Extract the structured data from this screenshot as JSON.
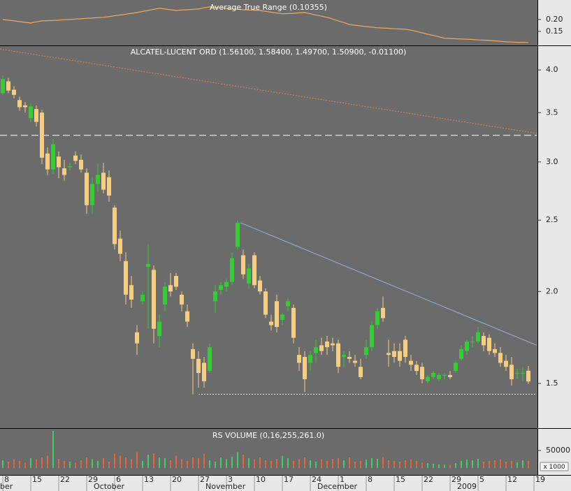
{
  "chart_data": [
    {
      "type": "line",
      "title": "Average True Range (0.10355)",
      "color": "#f0a860",
      "values": [
        0.2,
        0.197,
        0.194,
        0.191,
        0.188,
        0.185,
        0.19,
        0.194,
        0.195,
        0.196,
        0.197,
        0.199,
        0.2,
        0.202,
        0.203,
        0.205,
        0.206,
        0.208,
        0.209,
        0.212,
        0.216,
        0.219,
        0.222,
        0.226,
        0.229,
        0.234,
        0.238,
        0.243,
        0.247,
        0.244,
        0.241,
        0.238,
        0.24,
        0.241,
        0.243,
        0.244,
        0.249,
        0.253,
        0.251,
        0.249,
        0.246,
        0.244,
        0.243,
        0.241,
        0.24,
        0.239,
        0.238,
        0.234,
        0.231,
        0.227,
        0.224,
        0.225,
        0.226,
        0.228,
        0.229,
        0.224,
        0.219,
        0.214,
        0.209,
        0.202,
        0.194,
        0.187,
        0.179,
        0.176,
        0.173,
        0.17,
        0.168,
        0.165,
        0.164,
        0.163,
        0.161,
        0.16,
        0.159,
        0.155,
        0.15,
        0.144,
        0.138,
        0.133,
        0.127,
        0.121,
        0.12,
        0.119,
        0.118,
        0.117,
        0.116,
        0.114,
        0.113,
        0.112,
        0.11,
        0.108,
        0.106,
        0.105,
        0.104,
        0.104,
        0.10355,
        null
      ],
      "ylim": [
        0.091,
        0.282
      ],
      "yticks": [
        {
          "value": 0.2,
          "label": "0.20"
        },
        0.15
      ]
    },
    {
      "type": "candlestick",
      "title": "ALCATEL-LUCENT ORD (1.56100, 1.58400, 1.49700, 1.50900, -0.01100)",
      "up_color": "#33cc33",
      "down_color": "#f7cd80",
      "log_scale": true,
      "open": [
        3.72,
        3.86,
        3.76,
        3.64,
        3.58,
        3.44,
        3.54,
        3.5,
        3.08,
        2.93,
        3.05,
        2.94,
        2.95,
        3.06,
        3.02,
        2.9,
        2.62,
        2.8,
        2.9,
        2.86,
        2.6,
        2.36,
        2.2,
        2.04,
        1.76,
        1.94,
        2.16,
        2.14,
        1.74,
        1.92,
        2.04,
        2.1,
        1.98,
        1.88,
        1.67,
        1.62,
        1.6,
        1.56,
        1.94,
        2.01,
        2.03,
        2.06,
        2.3,
        2.24,
        2.05,
        2.24,
        2.07,
        2.0,
        1.82,
        1.94,
        1.83,
        1.91,
        1.9,
        1.64,
        1.63,
        1.6,
        1.65,
        1.69,
        1.71,
        1.7,
        1.7,
        1.63,
        1.63,
        1.61,
        1.58,
        1.64,
        1.68,
        1.8,
        1.9,
        1.65,
        1.66,
        1.66,
        1.72,
        1.61,
        1.59,
        1.58,
        1.51,
        1.53,
        1.52,
        1.54,
        1.54,
        1.56,
        1.62,
        1.66,
        1.71,
        1.71,
        1.74,
        1.73,
        1.67,
        1.65,
        1.61,
        1.59,
        1.55,
        1.55,
        1.561,
        null
      ],
      "high": [
        3.93,
        3.9,
        3.8,
        3.68,
        3.62,
        3.6,
        3.58,
        3.53,
        3.14,
        3.22,
        3.1,
        3.02,
        2.99,
        3.1,
        3.07,
        2.94,
        2.86,
        2.98,
        2.99,
        2.92,
        2.62,
        2.42,
        2.26,
        2.1,
        1.8,
        2.0,
        2.32,
        2.17,
        1.86,
        2.06,
        2.12,
        2.12,
        2.0,
        1.92,
        1.7,
        1.66,
        1.63,
        1.7,
        2.04,
        2.06,
        2.08,
        2.26,
        2.5,
        2.28,
        2.18,
        2.26,
        2.1,
        2.02,
        1.86,
        1.98,
        1.87,
        1.96,
        1.92,
        1.68,
        1.66,
        1.66,
        1.72,
        1.73,
        1.74,
        1.73,
        1.72,
        1.66,
        1.66,
        1.64,
        1.62,
        1.72,
        1.82,
        1.9,
        1.97,
        1.72,
        1.7,
        1.7,
        1.74,
        1.64,
        1.61,
        1.6,
        1.54,
        1.56,
        1.55,
        1.55,
        1.56,
        1.61,
        1.69,
        1.72,
        1.74,
        1.79,
        1.76,
        1.75,
        1.7,
        1.68,
        1.64,
        1.63,
        1.57,
        1.58,
        1.584,
        null
      ],
      "low": [
        3.7,
        3.72,
        3.66,
        3.52,
        3.5,
        3.4,
        3.35,
        2.98,
        2.88,
        2.89,
        2.85,
        2.83,
        2.92,
        2.98,
        2.9,
        2.55,
        2.55,
        2.73,
        2.72,
        2.65,
        2.28,
        2.2,
        1.92,
        1.9,
        1.64,
        1.92,
        1.78,
        1.7,
        1.68,
        1.88,
        1.97,
        2.01,
        1.88,
        1.79,
        1.45,
        1.48,
        1.48,
        1.55,
        1.87,
        1.98,
        2.0,
        2.04,
        2.28,
        2.08,
        2.02,
        2.02,
        1.98,
        1.84,
        1.77,
        1.76,
        1.8,
        1.88,
        1.7,
        1.56,
        1.46,
        1.56,
        1.6,
        1.64,
        1.64,
        1.66,
        1.55,
        1.58,
        1.6,
        1.58,
        1.52,
        1.62,
        1.66,
        1.78,
        1.82,
        1.58,
        1.6,
        1.58,
        1.6,
        1.56,
        1.54,
        1.5,
        1.5,
        1.52,
        1.51,
        1.52,
        1.52,
        1.55,
        1.61,
        1.64,
        1.68,
        1.7,
        1.66,
        1.64,
        1.63,
        1.58,
        1.56,
        1.49,
        1.52,
        1.51,
        1.497,
        null
      ],
      "close": [
        3.89,
        3.75,
        3.7,
        3.56,
        3.56,
        3.57,
        3.4,
        3.04,
        2.93,
        3.17,
        2.95,
        2.88,
        2.96,
        3.01,
        2.93,
        2.62,
        2.8,
        2.88,
        2.75,
        2.7,
        2.32,
        2.25,
        1.98,
        1.95,
        1.7,
        1.98,
        2.18,
        1.78,
        1.82,
        2.03,
        2.0,
        2.03,
        1.92,
        1.82,
        1.62,
        1.55,
        1.51,
        1.68,
        2.0,
        2.04,
        2.06,
        2.22,
        2.48,
        2.11,
        2.15,
        2.04,
        2.0,
        1.86,
        1.8,
        1.79,
        1.86,
        1.94,
        1.73,
        1.6,
        1.52,
        1.64,
        1.68,
        1.66,
        1.68,
        1.69,
        1.58,
        1.64,
        1.62,
        1.6,
        1.53,
        1.68,
        1.8,
        1.88,
        1.84,
        1.64,
        1.63,
        1.61,
        1.63,
        1.59,
        1.56,
        1.52,
        1.53,
        1.55,
        1.54,
        1.54,
        1.53,
        1.6,
        1.67,
        1.71,
        1.71,
        1.76,
        1.69,
        1.66,
        1.65,
        1.6,
        1.58,
        1.52,
        1.55,
        1.55,
        1.509,
        null
      ],
      "ylim": [
        1.307,
        4.31
      ],
      "yticks": [
        {
          "value": 4,
          "label": "4.0"
        },
        3.5,
        {
          "value": 3,
          "label": "3.0"
        },
        2.5,
        {
          "value": 2,
          "label": "2.0"
        },
        1.5
      ],
      "lines": [
        {
          "from": [
            -0.5,
            4.27
          ],
          "to": [
            95.5,
            3.28
          ],
          "color": "#e8804a",
          "style": "dotted"
        },
        {
          "from": [
            -0.5,
            3.26
          ],
          "to": [
            95.5,
            3.26
          ],
          "color": "#ffffff",
          "style": "dashed"
        },
        {
          "from": [
            42.5,
            2.48
          ],
          "to": [
            95.5,
            1.69
          ],
          "color": "#8fb4e0",
          "style": "solid"
        },
        {
          "from": [
            35,
            1.45
          ],
          "to": [
            95.5,
            1.45
          ],
          "color": "#ffffff",
          "style": "dotted"
        }
      ]
    },
    {
      "type": "bar",
      "title": "RS VOLUME (0,16,255,261.0)",
      "unit_label": "x 1000",
      "up_color": "#44cc66",
      "down_color": "#e06a3c",
      "values": [
        22000,
        18000,
        25000,
        20000,
        15000,
        28000,
        24000,
        30000,
        35000,
        106000,
        26000,
        20000,
        18000,
        15000,
        22000,
        30000,
        25000,
        20000,
        28000,
        18000,
        40000,
        35000,
        30000,
        25000,
        45000,
        20000,
        38000,
        42000,
        30000,
        28000,
        22000,
        35000,
        25000,
        20000,
        30000,
        28000,
        40000,
        22000,
        18000,
        30000,
        25000,
        32000,
        45000,
        38000,
        28000,
        24000,
        30000,
        22000,
        20000,
        26000,
        35000,
        28000,
        20000,
        25000,
        30000,
        22000,
        18000,
        24000,
        20000,
        26000,
        28000,
        22000,
        30000,
        18000,
        20000,
        24000,
        28000,
        26000,
        32000,
        22000,
        20000,
        18000,
        22000,
        24000,
        20000,
        16000,
        14000,
        12000,
        10000,
        9000,
        8000,
        14000,
        20000,
        24000,
        22000,
        26000,
        18000,
        20000,
        22000,
        24000,
        18000,
        20000,
        16000,
        22000,
        20000,
        null
      ],
      "ylim": [
        0,
        112000
      ],
      "yticks": [
        50000
      ],
      "categories": [
        "8",
        null,
        null,
        null,
        null,
        "15",
        null,
        null,
        null,
        null,
        "22",
        null,
        null,
        null,
        null,
        "29",
        null,
        null,
        null,
        null,
        "6",
        null,
        null,
        null,
        null,
        "13",
        null,
        null,
        null,
        null,
        "20",
        null,
        null,
        null,
        null,
        "27",
        null,
        null,
        null,
        null,
        "3",
        null,
        null,
        null,
        null,
        "10",
        null,
        null,
        null,
        null,
        "17",
        null,
        null,
        null,
        null,
        "24",
        null,
        null,
        null,
        null,
        "1",
        null,
        null,
        null,
        null,
        "8",
        null,
        null,
        null,
        null,
        "15",
        null,
        null,
        null,
        null,
        "22",
        null,
        null,
        null,
        null,
        "29",
        null,
        null,
        null,
        null,
        "5",
        null,
        null,
        null,
        null,
        "12",
        null,
        null,
        null,
        null,
        "19"
      ],
      "months": [
        "ber",
        "October",
        "November",
        "December",
        "2009"
      ]
    }
  ]
}
